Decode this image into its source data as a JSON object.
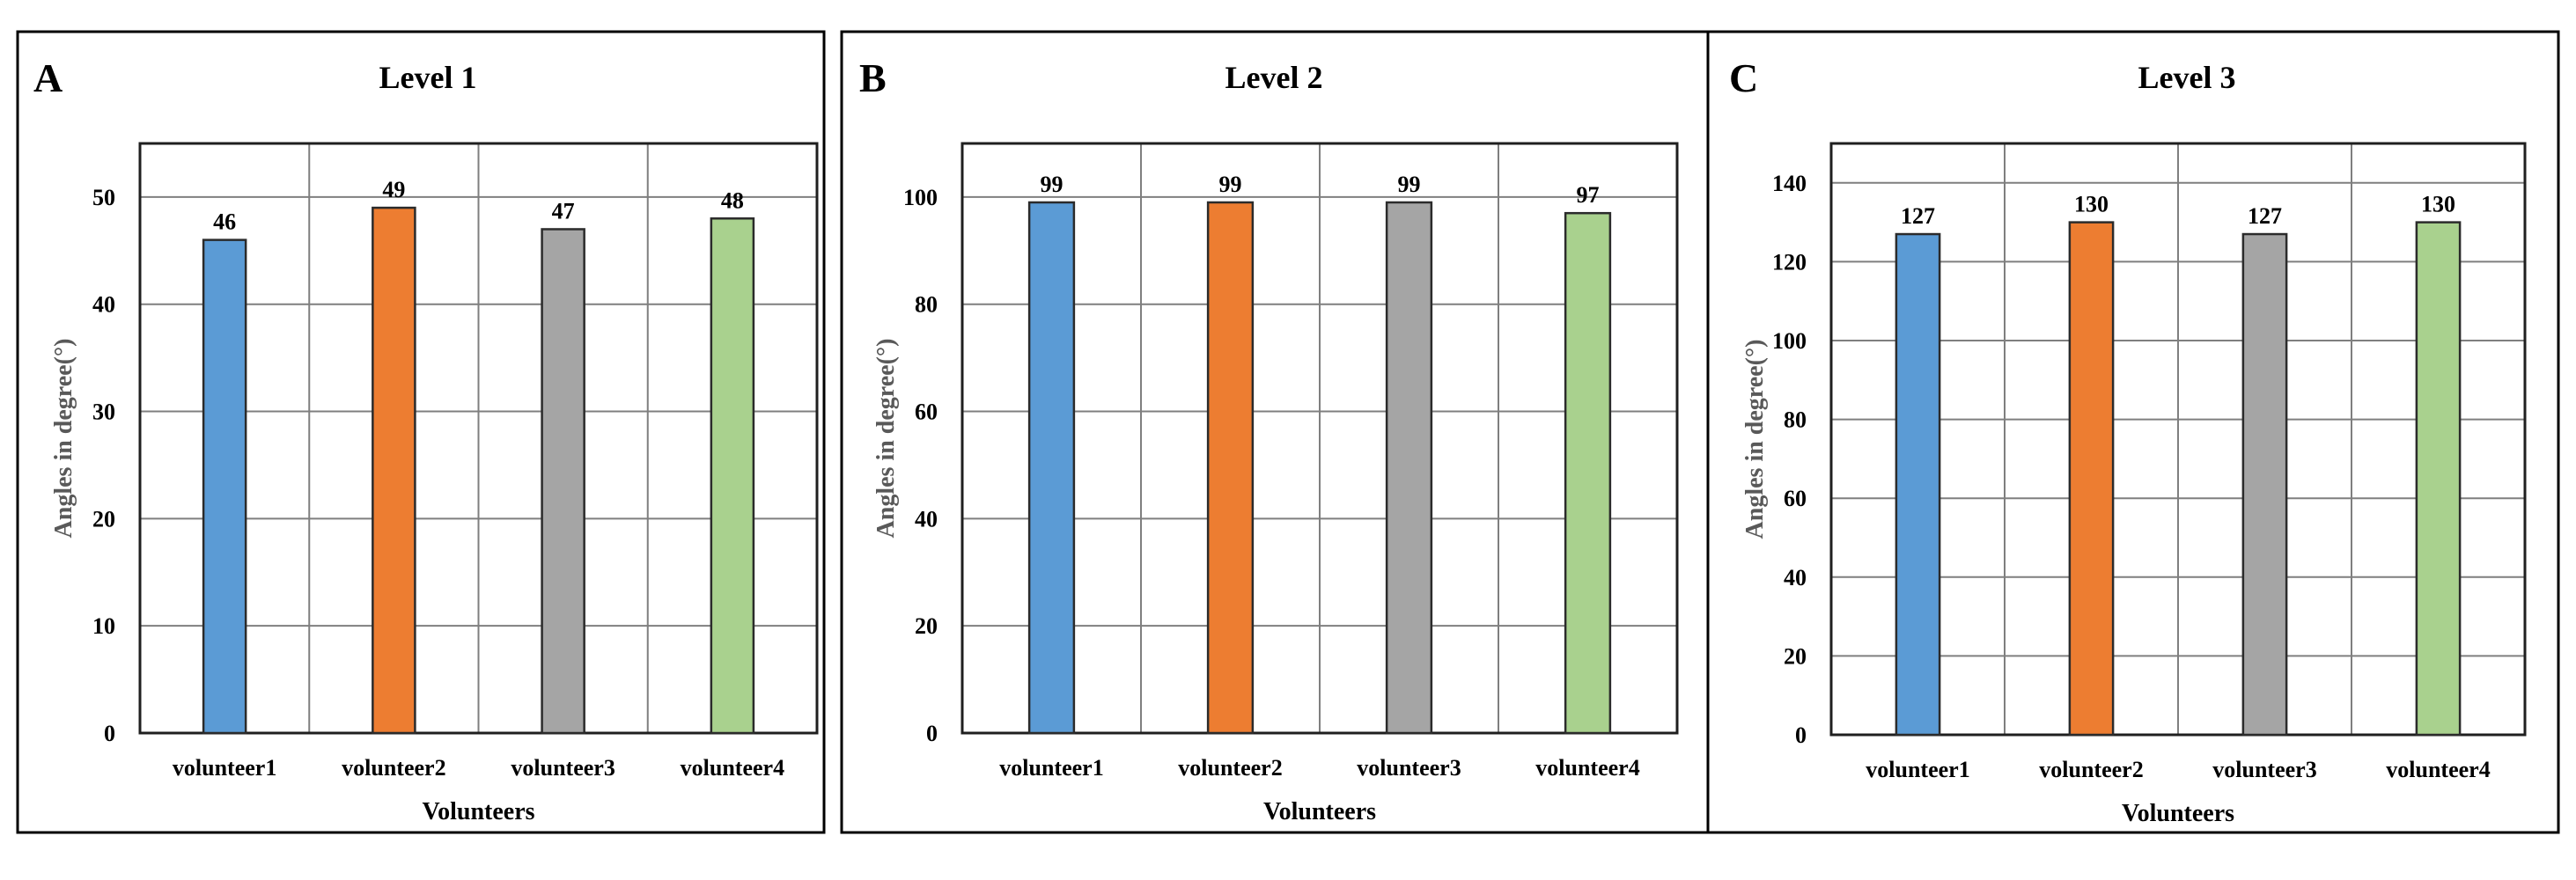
{
  "chart_data": [
    {
      "type": "bar",
      "panel": "A",
      "title": "Level 1",
      "xlabel": "Volunteers",
      "ylabel": "Angles in degree(°)",
      "categories": [
        "volunteer1",
        "volunteer2",
        "volunteer3",
        "volunteer4"
      ],
      "values": [
        46,
        49,
        47,
        48
      ],
      "colors": [
        "#5b9bd5",
        "#ed7d31",
        "#a5a5a5",
        "#a9d18e"
      ],
      "ylim": [
        0,
        55
      ],
      "yticks": [
        0,
        10,
        20,
        30,
        40,
        50
      ],
      "grid": true,
      "data_labels": true
    },
    {
      "type": "bar",
      "panel": "B",
      "title": "Level 2",
      "xlabel": "Volunteers",
      "ylabel": "Angles in degree(°)",
      "categories": [
        "volunteer1",
        "volunteer2",
        "volunteer3",
        "volunteer4"
      ],
      "values": [
        99,
        99,
        99,
        97
      ],
      "colors": [
        "#5b9bd5",
        "#ed7d31",
        "#a5a5a5",
        "#a9d18e"
      ],
      "ylim": [
        0,
        110
      ],
      "yticks": [
        0,
        20,
        40,
        60,
        80,
        100
      ],
      "grid": true,
      "data_labels": true
    },
    {
      "type": "bar",
      "panel": "C",
      "title": "Level 3",
      "xlabel": "Volunteers",
      "ylabel": "Angles in degree(°)",
      "categories": [
        "volunteer1",
        "volunteer2",
        "volunteer3",
        "volunteer4"
      ],
      "values": [
        127,
        130,
        127,
        130
      ],
      "colors": [
        "#5b9bd5",
        "#ed7d31",
        "#a5a5a5",
        "#a9d18e"
      ],
      "ylim": [
        0,
        150
      ],
      "yticks": [
        0,
        20,
        40,
        60,
        80,
        100,
        120,
        140
      ],
      "grid": true,
      "data_labels": true
    }
  ]
}
